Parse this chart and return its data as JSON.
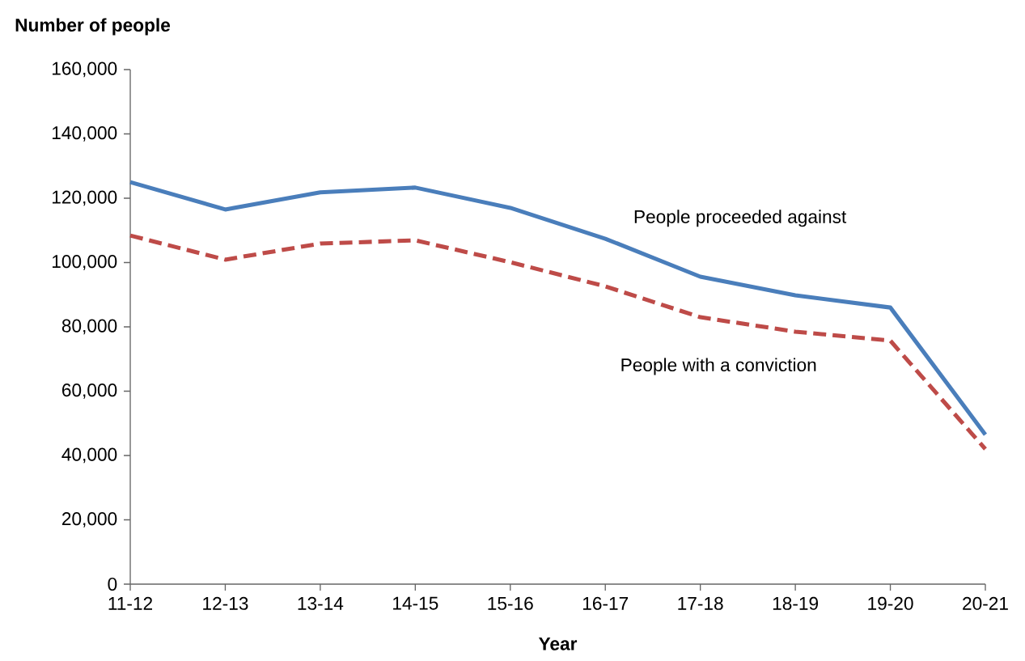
{
  "chart_data": {
    "type": "line",
    "ylabel": "Number of people",
    "xlabel": "Year",
    "categories": [
      "11-12",
      "12-13",
      "13-14",
      "14-15",
      "15-16",
      "16-17",
      "17-18",
      "18-19",
      "19-20",
      "20-21"
    ],
    "series": [
      {
        "name": "People proceeded against",
        "color": "#4a7ebb",
        "line_style": "solid",
        "values": [
          125000,
          116500,
          121800,
          123300,
          117000,
          107400,
          95600,
          89800,
          86000,
          46500
        ]
      },
      {
        "name": "People with a conviction",
        "color": "#be4b48",
        "line_style": "dashed",
        "values": [
          108400,
          100900,
          105900,
          106900,
          100100,
          92600,
          83000,
          78500,
          75700,
          42000
        ]
      }
    ],
    "ylim": [
      0,
      160000
    ],
    "yticks": [
      {
        "value": 0,
        "label": "0"
      },
      {
        "value": 20000,
        "label": "20,000"
      },
      {
        "value": 40000,
        "label": "40,000"
      },
      {
        "value": 60000,
        "label": "60,000"
      },
      {
        "value": 80000,
        "label": "80,000"
      },
      {
        "value": 100000,
        "label": "100,000"
      },
      {
        "value": 120000,
        "label": "120,000"
      },
      {
        "value": 140000,
        "label": "140,000"
      },
      {
        "value": 160000,
        "label": "160,000"
      }
    ],
    "grid": false,
    "legend": false,
    "marker": "none"
  }
}
